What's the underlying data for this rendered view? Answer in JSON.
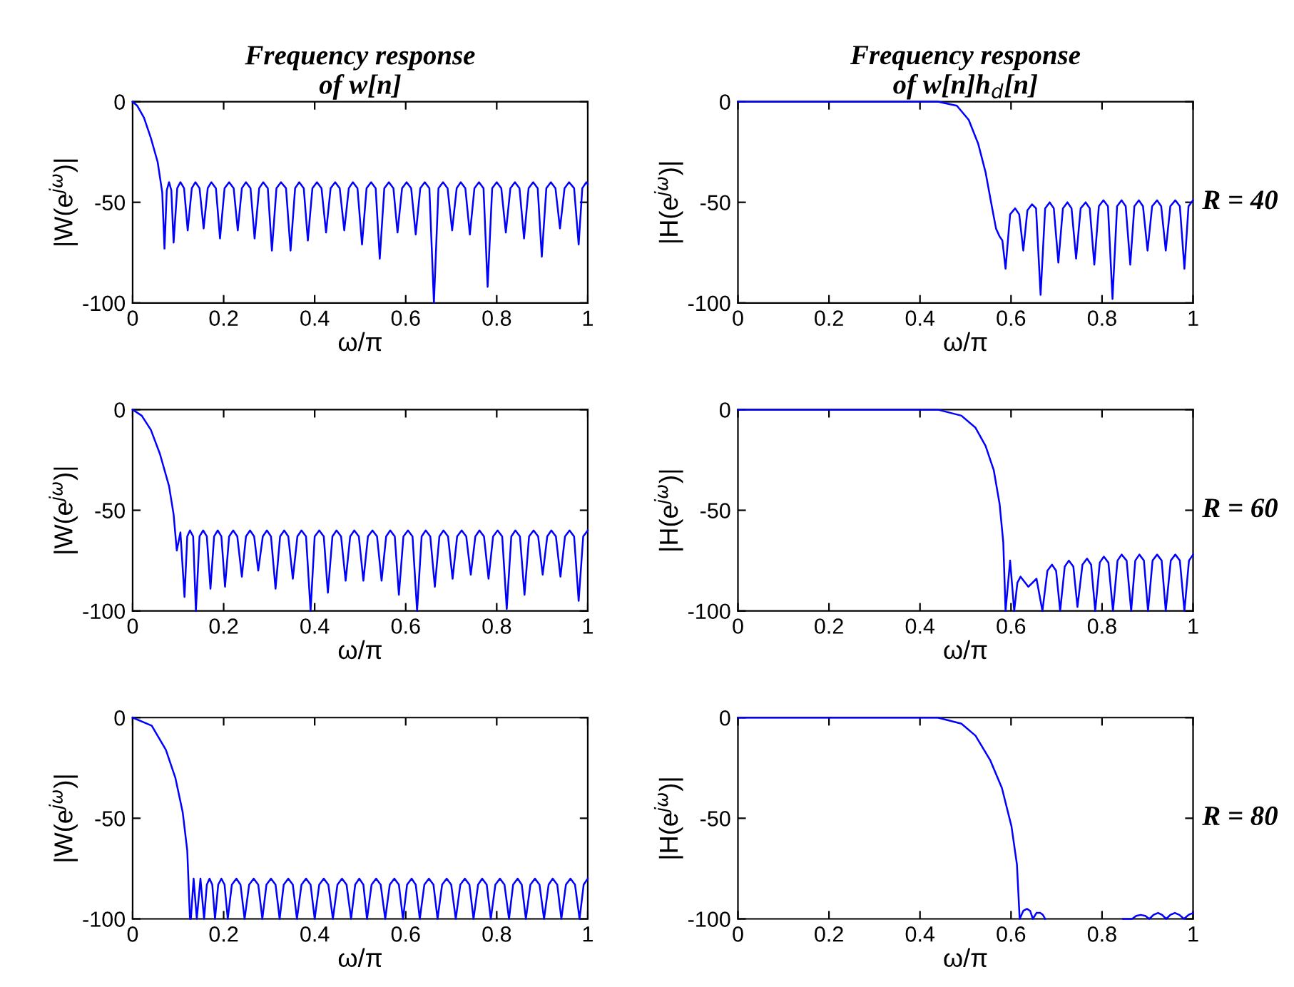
{
  "chart_data": [
    {
      "type": "line",
      "title": "Frequency response\nof w[n]",
      "xlabel": "ω/π",
      "ylabel": "|W(e$^{jω}$)|",
      "xlim": [
        0,
        1
      ],
      "ylim": [
        -100,
        0
      ],
      "xticks": [
        0,
        0.2,
        0.4,
        0.6,
        0.8,
        1
      ],
      "yticks": [
        -100,
        -50,
        0
      ],
      "color": "#0000ff",
      "x": [
        0,
        0.01,
        0.025,
        0.04,
        0.055,
        0.065,
        0.07,
        0.075,
        0.08,
        0.085,
        0.09,
        0.098,
        0.105,
        0.113,
        0.121,
        0.13,
        0.138,
        0.147,
        0.156,
        0.165,
        0.173,
        0.183,
        0.192,
        0.202,
        0.212,
        0.222,
        0.231,
        0.24,
        0.249,
        0.259,
        0.268,
        0.278,
        0.287,
        0.297,
        0.306,
        0.316,
        0.326,
        0.337,
        0.347,
        0.357,
        0.366,
        0.376,
        0.385,
        0.395,
        0.405,
        0.415,
        0.425,
        0.435,
        0.445,
        0.455,
        0.465,
        0.475,
        0.484,
        0.494,
        0.504,
        0.514,
        0.524,
        0.534,
        0.543,
        0.553,
        0.563,
        0.573,
        0.582,
        0.592,
        0.602,
        0.612,
        0.622,
        0.632,
        0.642,
        0.652,
        0.662,
        0.672,
        0.682,
        0.692,
        0.702,
        0.712,
        0.721,
        0.731,
        0.741,
        0.751,
        0.761,
        0.771,
        0.78,
        0.79,
        0.8,
        0.81,
        0.82,
        0.83,
        0.84,
        0.85,
        0.86,
        0.87,
        0.88,
        0.89,
        0.899,
        0.909,
        0.919,
        0.929,
        0.939,
        0.949,
        0.959,
        0.97,
        0.98,
        0.988,
        0.997,
        1.0
      ],
      "values": [
        0,
        -2,
        -8,
        -18,
        -30,
        -45,
        -73,
        -44,
        -40,
        -44,
        -70,
        -43,
        -40,
        -43,
        -64,
        -43,
        -40,
        -43,
        -63,
        -43,
        -40,
        -43,
        -68,
        -43,
        -40,
        -43,
        -64,
        -43,
        -40,
        -43,
        -68,
        -43,
        -40,
        -43,
        -74,
        -43,
        -40,
        -43,
        -74,
        -43,
        -40,
        -43,
        -69,
        -43,
        -40,
        -43,
        -65,
        -43,
        -40,
        -43,
        -64,
        -43,
        -40,
        -43,
        -71,
        -43,
        -40,
        -43,
        -78,
        -43,
        -40,
        -43,
        -65,
        -43,
        -40,
        -43,
        -66,
        -43,
        -40,
        -43,
        -100,
        -43,
        -40,
        -43,
        -64,
        -43,
        -40,
        -43,
        -66,
        -43,
        -40,
        -43,
        -92,
        -43,
        -40,
        -43,
        -65,
        -43,
        -40,
        -43,
        -68,
        -43,
        -40,
        -43,
        -77,
        -43,
        -40,
        -43,
        -63,
        -43,
        -40,
        -43,
        -71,
        -43,
        -40,
        -41
      ]
    },
    {
      "type": "line",
      "title": "Frequency response\nof w[n]h$_{d}$[n]",
      "xlabel": "ω/π",
      "ylabel": "|H(e$^{jω}$)|",
      "xlim": [
        0,
        1
      ],
      "ylim": [
        -100,
        0
      ],
      "xticks": [
        0,
        0.2,
        0.4,
        0.6,
        0.8,
        1
      ],
      "yticks": [
        -100,
        -50,
        0
      ],
      "color": "#0000ff",
      "annotations": [
        "R = 40"
      ],
      "x": [
        0,
        0.439,
        0.481,
        0.507,
        0.528,
        0.544,
        0.557,
        0.567,
        0.575,
        0.581,
        0.588,
        0.598,
        0.609,
        0.618,
        0.627,
        0.636,
        0.646,
        0.655,
        0.665,
        0.675,
        0.685,
        0.694,
        0.704,
        0.714,
        0.724,
        0.733,
        0.743,
        0.753,
        0.764,
        0.773,
        0.783,
        0.793,
        0.803,
        0.813,
        0.823,
        0.833,
        0.843,
        0.852,
        0.862,
        0.871,
        0.881,
        0.89,
        0.9,
        0.91,
        0.921,
        0.93,
        0.94,
        0.95,
        0.961,
        0.971,
        0.981,
        0.99,
        1.0
      ],
      "values": [
        0,
        0,
        -2,
        -9,
        -21,
        -35,
        -51,
        -63,
        -67,
        -69,
        -83,
        -56,
        -53,
        -56,
        -74,
        -54,
        -51,
        -53,
        -96,
        -53,
        -50,
        -53,
        -80,
        -53,
        -50,
        -53,
        -78,
        -53,
        -50,
        -53,
        -81,
        -52,
        -49,
        -52,
        -98,
        -52,
        -49,
        -52,
        -81,
        -52,
        -49,
        -52,
        -74,
        -52,
        -49,
        -52,
        -74,
        -52,
        -49,
        -52,
        -83,
        -52,
        -49
      ]
    },
    {
      "type": "line",
      "xlabel": "ω/π",
      "ylabel": "|W(e$^{jω}$)|",
      "xlim": [
        0,
        1
      ],
      "ylim": [
        -100,
        0
      ],
      "xticks": [
        0,
        0.2,
        0.4,
        0.6,
        0.8,
        1
      ],
      "yticks": [
        -100,
        -50,
        0
      ],
      "color": "#0000ff",
      "x": [
        0,
        0.02,
        0.04,
        0.06,
        0.08,
        0.09,
        0.097,
        0.105,
        0.114,
        0.12,
        0.126,
        0.133,
        0.139,
        0.147,
        0.155,
        0.163,
        0.171,
        0.179,
        0.187,
        0.195,
        0.203,
        0.212,
        0.221,
        0.23,
        0.24,
        0.249,
        0.258,
        0.267,
        0.276,
        0.286,
        0.295,
        0.304,
        0.314,
        0.324,
        0.333,
        0.342,
        0.352,
        0.362,
        0.371,
        0.381,
        0.391,
        0.4,
        0.41,
        0.42,
        0.429,
        0.439,
        0.448,
        0.458,
        0.468,
        0.478,
        0.487,
        0.497,
        0.507,
        0.517,
        0.527,
        0.537,
        0.547,
        0.557,
        0.566,
        0.576,
        0.585,
        0.595,
        0.605,
        0.615,
        0.625,
        0.635,
        0.644,
        0.654,
        0.664,
        0.674,
        0.683,
        0.693,
        0.703,
        0.713,
        0.723,
        0.733,
        0.743,
        0.753,
        0.762,
        0.772,
        0.782,
        0.792,
        0.802,
        0.812,
        0.822,
        0.832,
        0.841,
        0.851,
        0.861,
        0.871,
        0.881,
        0.891,
        0.901,
        0.911,
        0.92,
        0.93,
        0.94,
        0.95,
        0.96,
        0.97,
        0.98,
        0.99,
        1.0
      ],
      "values": [
        0,
        -3,
        -10,
        -22,
        -38,
        -52,
        -70,
        -61,
        -93,
        -63,
        -60,
        -63,
        -100,
        -63,
        -60,
        -63,
        -89,
        -63,
        -60,
        -63,
        -88,
        -63,
        -60,
        -63,
        -83,
        -63,
        -60,
        -63,
        -80,
        -63,
        -60,
        -63,
        -89,
        -63,
        -60,
        -63,
        -84,
        -63,
        -60,
        -63,
        -100,
        -63,
        -60,
        -63,
        -91,
        -63,
        -60,
        -63,
        -85,
        -63,
        -60,
        -63,
        -85,
        -63,
        -60,
        -63,
        -85,
        -63,
        -60,
        -63,
        -92,
        -63,
        -60,
        -63,
        -100,
        -63,
        -60,
        -63,
        -88,
        -63,
        -60,
        -63,
        -84,
        -63,
        -60,
        -63,
        -82,
        -63,
        -60,
        -63,
        -84,
        -63,
        -60,
        -63,
        -99,
        -63,
        -60,
        -63,
        -92,
        -63,
        -60,
        -63,
        -82,
        -63,
        -60,
        -63,
        -83,
        -63,
        -60,
        -63,
        -95,
        -63,
        -60
      ]
    },
    {
      "type": "line",
      "xlabel": "ω/π",
      "ylabel": "|H(e$^{jω}$)|",
      "xlim": [
        0,
        1
      ],
      "ylim": [
        -100,
        0
      ],
      "xticks": [
        0,
        0.2,
        0.4,
        0.6,
        0.8,
        1
      ],
      "yticks": [
        -100,
        -50,
        0
      ],
      "color": "#0000ff",
      "annotations": [
        "R = 60"
      ],
      "x": [
        0,
        0.439,
        0.491,
        0.522,
        0.544,
        0.562,
        0.575,
        0.583,
        0.588,
        0.598,
        0.607,
        0.614,
        0.621,
        0.638,
        0.656,
        0.669,
        0.68,
        0.69,
        0.699,
        0.708,
        0.718,
        0.727,
        0.737,
        0.746,
        0.757,
        0.767,
        0.776,
        0.785,
        0.795,
        0.804,
        0.814,
        0.824,
        0.834,
        0.843,
        0.854,
        0.864,
        0.873,
        0.882,
        0.892,
        0.901,
        0.911,
        0.921,
        0.931,
        0.94,
        0.951,
        0.961,
        0.971,
        0.981,
        0.991,
        1.0
      ],
      "values": [
        0,
        0,
        -3,
        -9,
        -18,
        -30,
        -47,
        -66,
        -100,
        -75,
        -100,
        -86,
        -83,
        -88,
        -84,
        -100,
        -80,
        -77,
        -80,
        -100,
        -78,
        -75,
        -78,
        -98,
        -77,
        -74,
        -77,
        -100,
        -76,
        -73,
        -76,
        -100,
        -75,
        -72,
        -75,
        -100,
        -75,
        -72,
        -75,
        -100,
        -75,
        -72,
        -75,
        -100,
        -75,
        -72,
        -75,
        -100,
        -75,
        -72
      ]
    },
    {
      "type": "line",
      "xlabel": "ω/π",
      "ylabel": "|W(e$^{jω}$)|",
      "xlim": [
        0,
        1
      ],
      "ylim": [
        -100,
        0
      ],
      "xticks": [
        0,
        0.2,
        0.4,
        0.6,
        0.8,
        1
      ],
      "yticks": [
        -100,
        -50,
        0
      ],
      "color": "#0000ff",
      "x": [
        0,
        0.042,
        0.073,
        0.094,
        0.11,
        0.12,
        0.126,
        0.128,
        0.134,
        0.141,
        0.149,
        0.157,
        0.163,
        0.169,
        0.175,
        0.181,
        0.188,
        0.195,
        0.202,
        0.209,
        0.218,
        0.228,
        0.237,
        0.246,
        0.256,
        0.266,
        0.276,
        0.285,
        0.294,
        0.304,
        0.314,
        0.323,
        0.332,
        0.342,
        0.352,
        0.361,
        0.371,
        0.381,
        0.391,
        0.4,
        0.41,
        0.42,
        0.43,
        0.44,
        0.45,
        0.46,
        0.47,
        0.48,
        0.489,
        0.498,
        0.507,
        0.515,
        0.525,
        0.535,
        0.545,
        0.555,
        0.565,
        0.575,
        0.585,
        0.594,
        0.603,
        0.613,
        0.622,
        0.631,
        0.641,
        0.651,
        0.661,
        0.67,
        0.68,
        0.69,
        0.7,
        0.71,
        0.72,
        0.73,
        0.74,
        0.749,
        0.759,
        0.768,
        0.778,
        0.787,
        0.797,
        0.807,
        0.817,
        0.827,
        0.836,
        0.846,
        0.855,
        0.864,
        0.874,
        0.884,
        0.894,
        0.904,
        0.914,
        0.923,
        0.933,
        0.942,
        0.952,
        0.962,
        0.972,
        0.982,
        0.991,
        1.0
      ],
      "values": [
        0,
        -4,
        -16,
        -30,
        -47,
        -66,
        -100,
        -100,
        -80,
        -100,
        -80,
        -100,
        -83,
        -80,
        -83,
        -100,
        -83,
        -80,
        -83,
        -100,
        -83,
        -80,
        -83,
        -100,
        -83,
        -80,
        -83,
        -100,
        -83,
        -80,
        -83,
        -100,
        -83,
        -80,
        -83,
        -100,
        -83,
        -80,
        -83,
        -100,
        -83,
        -80,
        -83,
        -100,
        -83,
        -80,
        -83,
        -100,
        -83,
        -80,
        -83,
        -100,
        -83,
        -80,
        -83,
        -100,
        -83,
        -80,
        -83,
        -100,
        -83,
        -80,
        -83,
        -100,
        -83,
        -80,
        -83,
        -100,
        -83,
        -80,
        -83,
        -100,
        -83,
        -80,
        -83,
        -100,
        -83,
        -80,
        -83,
        -100,
        -83,
        -80,
        -83,
        -100,
        -83,
        -80,
        -83,
        -100,
        -83,
        -80,
        -83,
        -100,
        -83,
        -80,
        -83,
        -100,
        -83,
        -80,
        -83,
        -100,
        -83,
        -80
      ]
    },
    {
      "type": "line",
      "xlabel": "ω/π",
      "ylabel": "|H(e$^{jω}$)|",
      "xlim": [
        0,
        1
      ],
      "ylim": [
        -100,
        0
      ],
      "xticks": [
        0,
        0.2,
        0.4,
        0.6,
        0.8,
        1
      ],
      "yticks": [
        -100,
        -50,
        0
      ],
      "color": "#0000ff",
      "annotations": [
        "R = 80"
      ],
      "x": [
        0,
        0.439,
        0.491,
        0.522,
        0.554,
        0.58,
        0.601,
        0.613,
        0.619,
        0.627,
        0.635,
        0.642,
        0.648,
        0.656,
        0.664,
        0.67,
        0.675,
        0.76,
        0.846,
        0.866,
        0.875,
        0.885,
        0.895,
        0.904,
        0.913,
        0.923,
        0.932,
        0.941,
        0.95,
        0.96,
        0.97,
        0.98,
        0.99,
        1.0
      ],
      "values": [
        0,
        0,
        -3,
        -9,
        -21,
        -35,
        -54,
        -73,
        -100,
        -96,
        -95,
        -96,
        -100,
        -97,
        -97,
        -98,
        -100,
        null,
        -100,
        -100,
        -98.5,
        -98,
        -98.5,
        -100,
        -98,
        -97,
        -98,
        -100,
        -98,
        -97,
        -98,
        -100,
        -98,
        -97
      ]
    }
  ]
}
